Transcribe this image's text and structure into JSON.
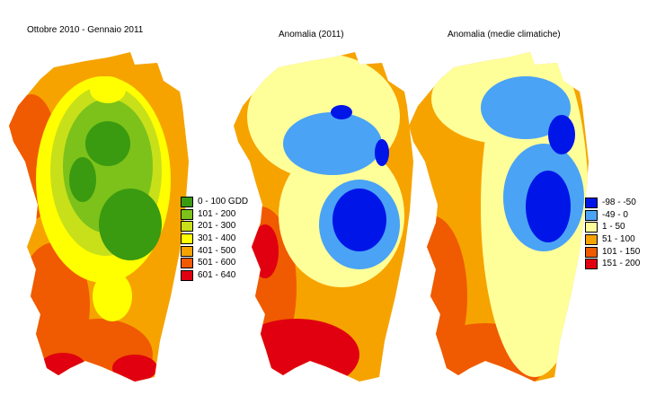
{
  "panels": [
    {
      "title": "Ottobre 2010 - Gennaio 2011",
      "legend": [
        {
          "label": "0 - 100 GDD",
          "color": "#3a9a10"
        },
        {
          "label": "101 - 200",
          "color": "#7cc21a"
        },
        {
          "label": "201 - 300",
          "color": "#c8e01a"
        },
        {
          "label": "301 - 400",
          "color": "#ffff00"
        },
        {
          "label": "401 - 500",
          "color": "#f6a300"
        },
        {
          "label": "501 - 600",
          "color": "#f05a00"
        },
        {
          "label": "601 - 640",
          "color": "#e00010"
        }
      ]
    },
    {
      "title": "Anomalia (2011)"
    },
    {
      "title": "Anomalia (medie climatiche)",
      "legend": [
        {
          "label": "-98 - -50",
          "color": "#0015e8"
        },
        {
          "label": "-49 - 0",
          "color": "#4aa3f5"
        },
        {
          "label": "1 - 50",
          "color": "#ffff9a"
        },
        {
          "label": "51 - 100",
          "color": "#f6a300"
        },
        {
          "label": "101 - 150",
          "color": "#f05a00"
        },
        {
          "label": "151 - 200",
          "color": "#e00010"
        }
      ]
    }
  ]
}
